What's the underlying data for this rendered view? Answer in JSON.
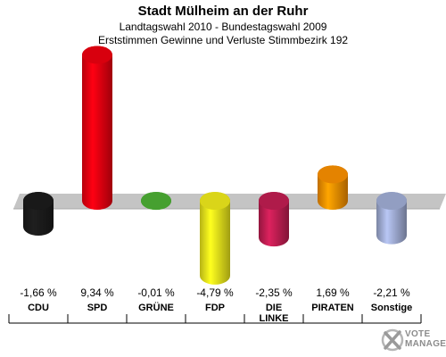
{
  "header": {
    "title": "Stadt Mülheim an der Ruhr",
    "subtitle1": "Landtagswahl 2010 - Bundestagswahl 2009",
    "subtitle2": "Erststimmen Gewinne und Verluste Stimmbezirk 192"
  },
  "logo": {
    "text1": "VOTE",
    "text2": "MANAGER",
    "icon": "checkmark-x-icon"
  },
  "chart_data": {
    "type": "bar",
    "title": "Stadt Mülheim an der Ruhr",
    "subtitle": "Landtagswahl 2010 - Bundestagswahl 2009 / Erststimmen Gewinne und Verluste Stimmbezirk 192",
    "categories": [
      "CDU",
      "SPD",
      "GRÜNE",
      "FDP",
      "DIE LINKE",
      "PIRATEN",
      "Sonstige"
    ],
    "values": [
      -1.66,
      9.34,
      -0.01,
      -4.79,
      -2.35,
      1.69,
      -2.21
    ],
    "labels": [
      "-1,66 %",
      "9,34 %",
      "-0,01 %",
      "-4,79 %",
      "-2,35 %",
      "1,69 %",
      "-2,21 %"
    ],
    "colors": [
      "#1a1a1a",
      "#e3000f",
      "#4aa832",
      "#e5e01a",
      "#b81c4e",
      "#f08a00",
      "#9aa6cc"
    ],
    "ylim": [
      -5.5,
      10
    ]
  }
}
